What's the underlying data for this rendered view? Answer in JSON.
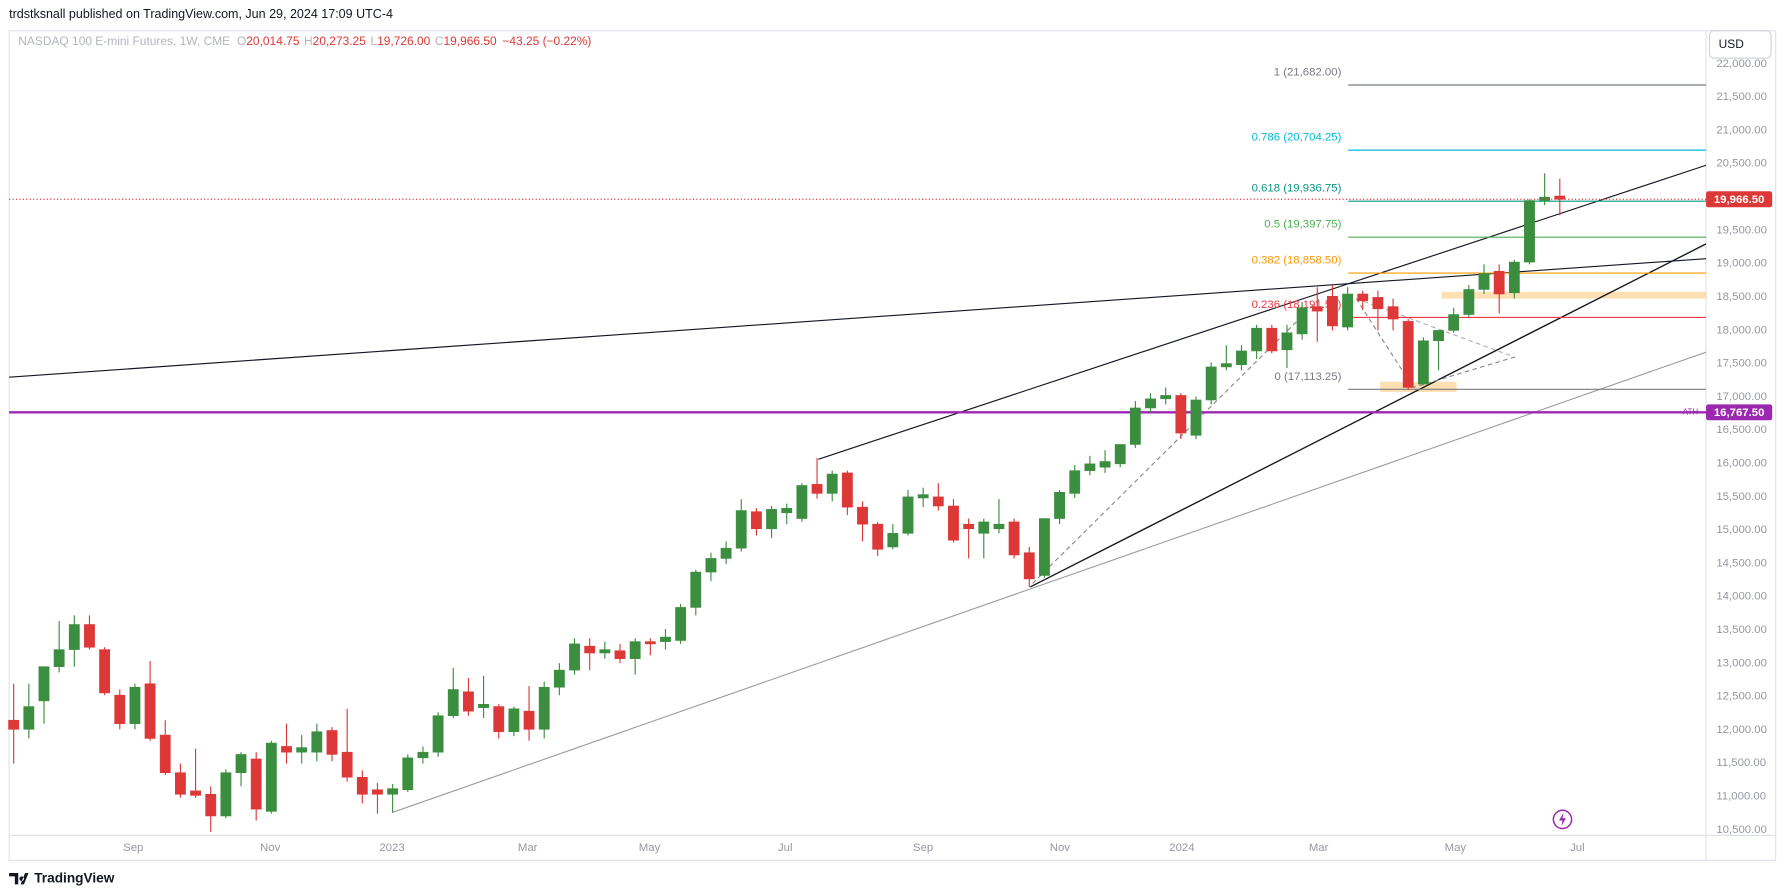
{
  "header": {
    "publisher": "trdstksnall published on TradingView.com, Jun 29, 2024 17:09 UTC-4",
    "brand": "TradingView"
  },
  "chart_data": {
    "type": "candlestick",
    "title": "NASDAQ 100 E-mini Futures, 1W, CME",
    "ohlc_legend": [
      {
        "label": "O",
        "value": "20,014.75"
      },
      {
        "label": "H",
        "value": "20,273.25"
      },
      {
        "label": "L",
        "value": "19,726.00"
      },
      {
        "label": "C",
        "value": "19,966.50"
      }
    ],
    "change": "−43.25 (−0.22%)",
    "currency": "USD",
    "open": [
      12145,
      12008,
      12435,
      12949,
      13205,
      13582,
      13205,
      12521,
      12093,
      12692,
      11922,
      11357,
      11084,
      11033,
      10707,
      11357,
      11563,
      10776,
      11751,
      11665,
      11665,
      11991,
      11665,
      11289,
      11101,
      11033,
      11101,
      11580,
      11665,
      12213,
      12572,
      12333,
      12350,
      11973,
      12281,
      12008,
      12640,
      12897,
      13257,
      13154,
      13188,
      13069,
      13325,
      13325,
      13342,
      13838,
      14369,
      14574,
      14728,
      15276,
      15019,
      15259,
      15173,
      15686,
      15550,
      15858,
      15344,
      15088,
      14746,
      14951,
      15481,
      15498,
      15361,
      15088,
      14951,
      15019,
      15122,
      14660,
      14318,
      15173,
      15550,
      15892,
      15943,
      15994,
      16285,
      16833,
      16970,
      17021,
      16422,
      16953,
      17449,
      17483,
      17689,
      18031,
      17706,
      17945,
      18355,
      18510,
      18048,
      18544,
      18493,
      18355,
      18133,
      17192,
      17842,
      17997,
      18236,
      18612,
      18886,
      18561,
      19023,
      19947,
      20014.75
    ],
    "high": [
      12692,
      12692,
      12949,
      13633,
      13719,
      13719,
      13240,
      12606,
      12692,
      13034,
      12145,
      11494,
      11717,
      11152,
      11409,
      11665,
      11665,
      11837,
      12093,
      11922,
      12093,
      12042,
      12316,
      11392,
      11203,
      11186,
      11631,
      11751,
      12264,
      12932,
      12778,
      12812,
      12384,
      12350,
      12658,
      12726,
      13000,
      13376,
      13376,
      13325,
      13291,
      13376,
      13376,
      13513,
      13890,
      14403,
      14660,
      14831,
      15464,
      15327,
      15361,
      15396,
      15704,
      16080,
      15892,
      15892,
      15430,
      15122,
      15088,
      15601,
      15635,
      15704,
      15464,
      15173,
      15173,
      15464,
      15173,
      14746,
      15173,
      15601,
      15977,
      16114,
      16200,
      16285,
      16936,
      17055,
      17141,
      17055,
      17004,
      17517,
      17774,
      17774,
      18082,
      18082,
      18082,
      18424,
      18646,
      18680,
      18646,
      18595,
      18595,
      18475,
      18168,
      17894,
      17997,
      18338,
      18680,
      18989,
      18989,
      19057,
      19964,
      20357,
      20273.25
    ],
    "low": [
      11494,
      11871,
      12093,
      12863,
      12949,
      13205,
      12521,
      12008,
      12008,
      11837,
      11323,
      10981,
      10981,
      10468,
      10673,
      11152,
      10639,
      10742,
      11494,
      11494,
      11529,
      11529,
      11221,
      10896,
      10742,
      10759,
      11067,
      11494,
      11597,
      12179,
      12213,
      12179,
      11871,
      11905,
      11837,
      11871,
      12521,
      12829,
      12897,
      13069,
      13000,
      12829,
      13120,
      13205,
      13291,
      13719,
      14232,
      14489,
      14677,
      14917,
      14882,
      15088,
      15122,
      15473,
      15430,
      15225,
      14831,
      14609,
      14711,
      14917,
      15344,
      15293,
      14814,
      14574,
      14574,
      14951,
      14574,
      14147,
      14283,
      15088,
      15481,
      15823,
      15858,
      15943,
      16234,
      16764,
      16885,
      16365,
      16365,
      16885,
      17397,
      17397,
      17568,
      17654,
      17432,
      17859,
      17825,
      17997,
      17997,
      18304,
      17997,
      17997,
      17106,
      17175,
      17397,
      17962,
      18202,
      18544,
      18253,
      18475,
      18989,
      19878,
      19726
    ],
    "close": [
      12008,
      12350,
      12949,
      13205,
      13582,
      13240,
      12555,
      12093,
      12640,
      11871,
      11357,
      11033,
      11016,
      10707,
      11357,
      11631,
      10810,
      11802,
      11665,
      11734,
      11973,
      11631,
      11289,
      11033,
      11033,
      11118,
      11580,
      11665,
      12213,
      12606,
      12281,
      12384,
      11973,
      12316,
      12008,
      12640,
      12897,
      13291,
      13154,
      13205,
      13069,
      13325,
      13291,
      13393,
      13838,
      14369,
      14574,
      14728,
      15293,
      15019,
      15310,
      15327,
      15669,
      15550,
      15841,
      15344,
      15088,
      14711,
      14951,
      15498,
      15532,
      15361,
      14848,
      15019,
      15122,
      15088,
      14626,
      14266,
      15173,
      15567,
      15892,
      15994,
      16029,
      16285,
      16833,
      16970,
      17021,
      16456,
      16953,
      17449,
      17500,
      17689,
      18031,
      17689,
      17962,
      18338,
      18287,
      18065,
      18544,
      18441,
      18321,
      18168,
      17141,
      17842,
      17997,
      18236,
      18612,
      18852,
      18544,
      19023,
      19947,
      19998,
      19966.5
    ],
    "up_color": "#3b8e3f",
    "down_color": "#dc3838",
    "xlim": [
      -0.3,
      111.65
    ],
    "xticks": [
      {
        "value": 7.89,
        "label": "Sep"
      },
      {
        "value": 16.92,
        "label": "Nov"
      },
      {
        "value": 24.96,
        "label": "2023"
      },
      {
        "value": 33.91,
        "label": "Mar"
      },
      {
        "value": 41.95,
        "label": "May"
      },
      {
        "value": 50.9,
        "label": "Jul"
      },
      {
        "value": 60.0,
        "label": "Sep"
      },
      {
        "value": 69.02,
        "label": "Nov"
      },
      {
        "value": 77.07,
        "label": "2024"
      },
      {
        "value": 86.09,
        "label": "Mar"
      },
      {
        "value": 95.11,
        "label": "May"
      },
      {
        "value": 103.16,
        "label": "Jul"
      }
    ],
    "ylim": [
      10416,
      22479
    ],
    "yticks": [
      {
        "value": 10500,
        "label": "10,500.00"
      },
      {
        "value": 11000,
        "label": "11,000.00"
      },
      {
        "value": 11500,
        "label": "11,500.00"
      },
      {
        "value": 12000,
        "label": "12,000.00"
      },
      {
        "value": 12500,
        "label": "12,500.00"
      },
      {
        "value": 13000,
        "label": "13,000.00"
      },
      {
        "value": 13500,
        "label": "13,500.00"
      },
      {
        "value": 14000,
        "label": "14,000.00"
      },
      {
        "value": 14500,
        "label": "14,500.00"
      },
      {
        "value": 15000,
        "label": "15,000.00"
      },
      {
        "value": 15500,
        "label": "15,500.00"
      },
      {
        "value": 16000,
        "label": "16,000.00"
      },
      {
        "value": 16500,
        "label": "16,500.00"
      },
      {
        "value": 17000,
        "label": "17,000.00"
      },
      {
        "value": 17500,
        "label": "17,500.00"
      },
      {
        "value": 18000,
        "label": "18,000.00"
      },
      {
        "value": 18500,
        "label": "18,500.00"
      },
      {
        "value": 19000,
        "label": "19,000.00"
      },
      {
        "value": 19500,
        "label": "19,500.00"
      },
      {
        "value": 20000,
        "label": "20,000.00"
      },
      {
        "value": 20500,
        "label": "20,500.00"
      },
      {
        "value": 21000,
        "label": "21,000.00"
      },
      {
        "value": 21500,
        "label": "21,500.00"
      },
      {
        "value": 22000,
        "label": "22,000.00"
      }
    ],
    "last_price_label": "19,966.50",
    "ath": {
      "label": "ATH",
      "price": 16767.5,
      "price_label": "16,767.50",
      "color": "#9c27b0"
    },
    "fib_levels": [
      {
        "price": 21682,
        "label": "1 (21,682.00)",
        "color": "#787b86"
      },
      {
        "price": 20704.25,
        "label": "0.786 (20,704.25)",
        "color": "#00bcd4"
      },
      {
        "price": 19936.75,
        "label": "0.618 (19,936.75)",
        "color": "#089981"
      },
      {
        "price": 19397.75,
        "label": "0.5 (19,397.75)",
        "color": "#4caf50"
      },
      {
        "price": 18858.5,
        "label": "0.382 (18,858.50)",
        "color": "#ff9800"
      },
      {
        "price": 18191.5,
        "label": "0.236 (18,191.50)",
        "color": "#f23645"
      },
      {
        "price": 17113.25,
        "label": "0 (17,113.25)",
        "color": "#787b86"
      }
    ]
  }
}
